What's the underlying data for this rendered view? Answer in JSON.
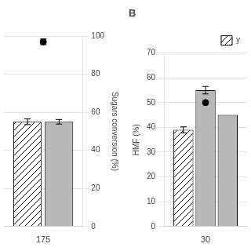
{
  "chart_data": [
    {
      "type": "bar",
      "categories": [
        "175"
      ],
      "series": [
        {
          "color": "white",
          "values": [
            55
          ],
          "errors": [
            1.5
          ]
        },
        {
          "color": "#b8b8b8",
          "values": [
            55
          ],
          "errors": [
            1.2
          ]
        },
        {
          "type": "scatter",
          "color": "black",
          "values": [
            97
          ],
          "errors": [
            1.5
          ]
        }
      ],
      "y_label": "Sugars conversion (%)",
      "ylim": [
        0,
        100
      ],
      "yticks": [
        0,
        20,
        40,
        60,
        80,
        100
      ],
      "grid": true
    },
    {
      "type": "bar",
      "title": "B",
      "categories": [
        "30"
      ],
      "series": [
        {
          "name": "y",
          "color": "white",
          "values": [
            39
          ],
          "errors": [
            1.2
          ]
        },
        {
          "color": "#b8b8b8",
          "values": [
            55
          ],
          "errors": [
            1.5
          ]
        },
        {
          "color": "#b8b8b8",
          "values": [
            45
          ]
        },
        {
          "type": "scatter",
          "color": "black",
          "values": [
            50
          ]
        }
      ],
      "y_label": "HMF (%)",
      "ylim": [
        0,
        70
      ],
      "yticks": [
        0,
        10,
        20,
        30,
        40,
        50,
        60,
        70
      ],
      "grid": true,
      "legend": "upper right"
    }
  ]
}
